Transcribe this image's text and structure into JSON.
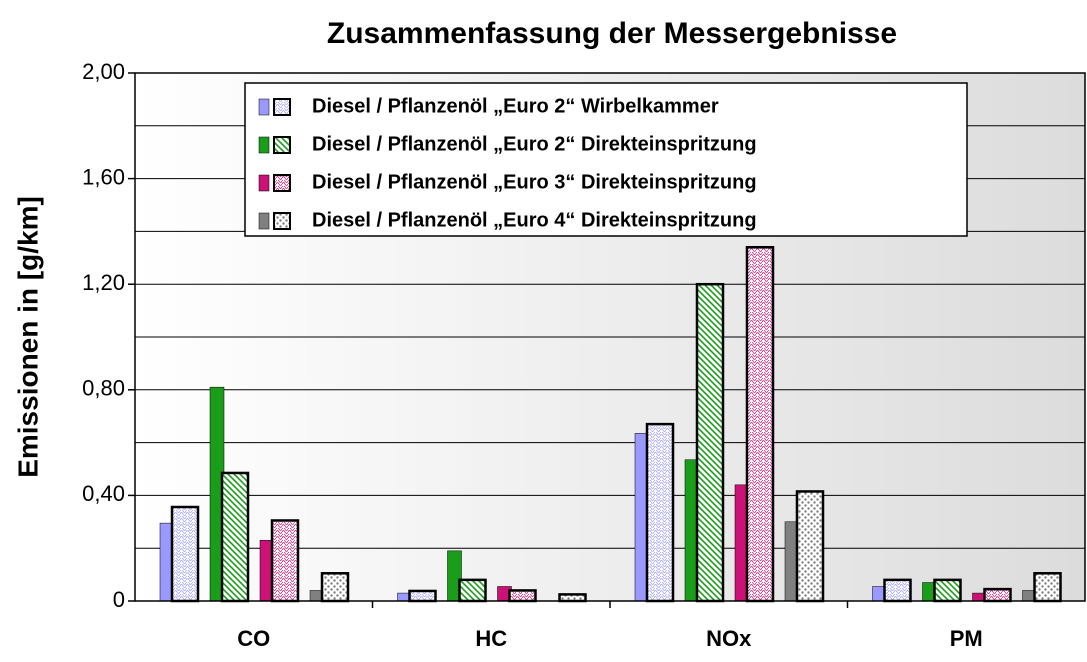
{
  "chart_data": {
    "type": "bar",
    "title": "Zusammenfassung der Messergebnisse",
    "y_label": "Emissionen in [g/km]",
    "categories": [
      "CO",
      "HC",
      "NOx",
      "PM"
    ],
    "series": [
      {
        "name": "Diesel / Pflanzenöl „Euro 2“ Wirbelkammer",
        "color": "#9999ff",
        "values": [
          [
            0.295,
            0.356
          ],
          [
            0.03,
            0.038
          ],
          [
            0.635,
            0.67
          ],
          [
            0.055,
            0.08
          ]
        ]
      },
      {
        "name": "Diesel / Pflanzenöl „Euro 2“ Direkteinspritzung",
        "color": "#1a9e1a",
        "values": [
          [
            0.81,
            0.485
          ],
          [
            0.19,
            0.08
          ],
          [
            0.535,
            1.2
          ],
          [
            0.07,
            0.08
          ]
        ]
      },
      {
        "name": "Diesel / Pflanzenöl „Euro 3“ Direkteinspritzung",
        "color": "#cc1177",
        "values": [
          [
            0.23,
            0.305
          ],
          [
            0.055,
            0.04
          ],
          [
            0.44,
            1.34
          ],
          [
            0.03,
            0.045
          ]
        ]
      },
      {
        "name": "Diesel / Pflanzenöl „Euro 4“ Direkteinspritzung",
        "color": "#808080",
        "values": [
          [
            0.04,
            0.105
          ],
          [
            0,
            0.025
          ],
          [
            0.3,
            0.415
          ],
          [
            0.04,
            0.105
          ]
        ]
      }
    ],
    "ylim": [
      0,
      2
    ],
    "yticks": [
      {
        "value": 0,
        "label": "0"
      },
      {
        "value": 0.4,
        "label": "0,40"
      },
      {
        "value": 0.8,
        "label": "0,80"
      },
      {
        "value": 1.2,
        "label": "1,20"
      },
      {
        "value": 1.6,
        "label": "1,60"
      },
      {
        "value": 2,
        "label": "2,00"
      }
    ],
    "minor_yticks": [
      0.2,
      0.6,
      1.0,
      1.4,
      1.8
    ],
    "grid": true,
    "legend": "top"
  }
}
